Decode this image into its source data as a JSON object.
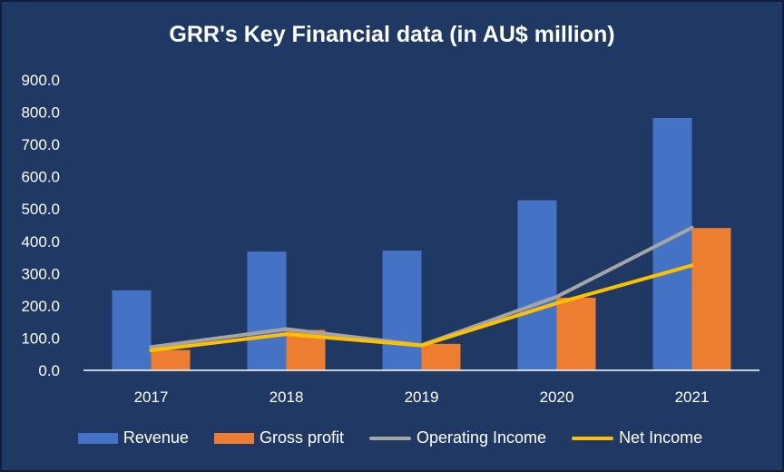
{
  "chart_data": {
    "type": "bar",
    "title": "GRR's Key Financial data (in AU$ million)",
    "categories": [
      "2017",
      "2018",
      "2019",
      "2020",
      "2021"
    ],
    "ylim": [
      0,
      900
    ],
    "yticks": [
      "0.0",
      "100.0",
      "200.0",
      "300.0",
      "400.0",
      "500.0",
      "600.0",
      "700.0",
      "800.0",
      "900.0"
    ],
    "grid": false,
    "legend_position": "bottom",
    "series": [
      {
        "name": "Revenue",
        "kind": "bar",
        "color": "#4472c4",
        "values": [
          248,
          368,
          371,
          527,
          782
        ]
      },
      {
        "name": "Gross profit",
        "kind": "bar",
        "color": "#ed7d31",
        "values": [
          63,
          125,
          82,
          225,
          441
        ]
      },
      {
        "name": "Operating Income",
        "kind": "line",
        "color": "#a5a5a5",
        "values": [
          72,
          128,
          78,
          228,
          442
        ]
      },
      {
        "name": "Net Income",
        "kind": "line",
        "color": "#ffc000",
        "values": [
          62,
          112,
          77,
          208,
          325
        ]
      }
    ]
  }
}
